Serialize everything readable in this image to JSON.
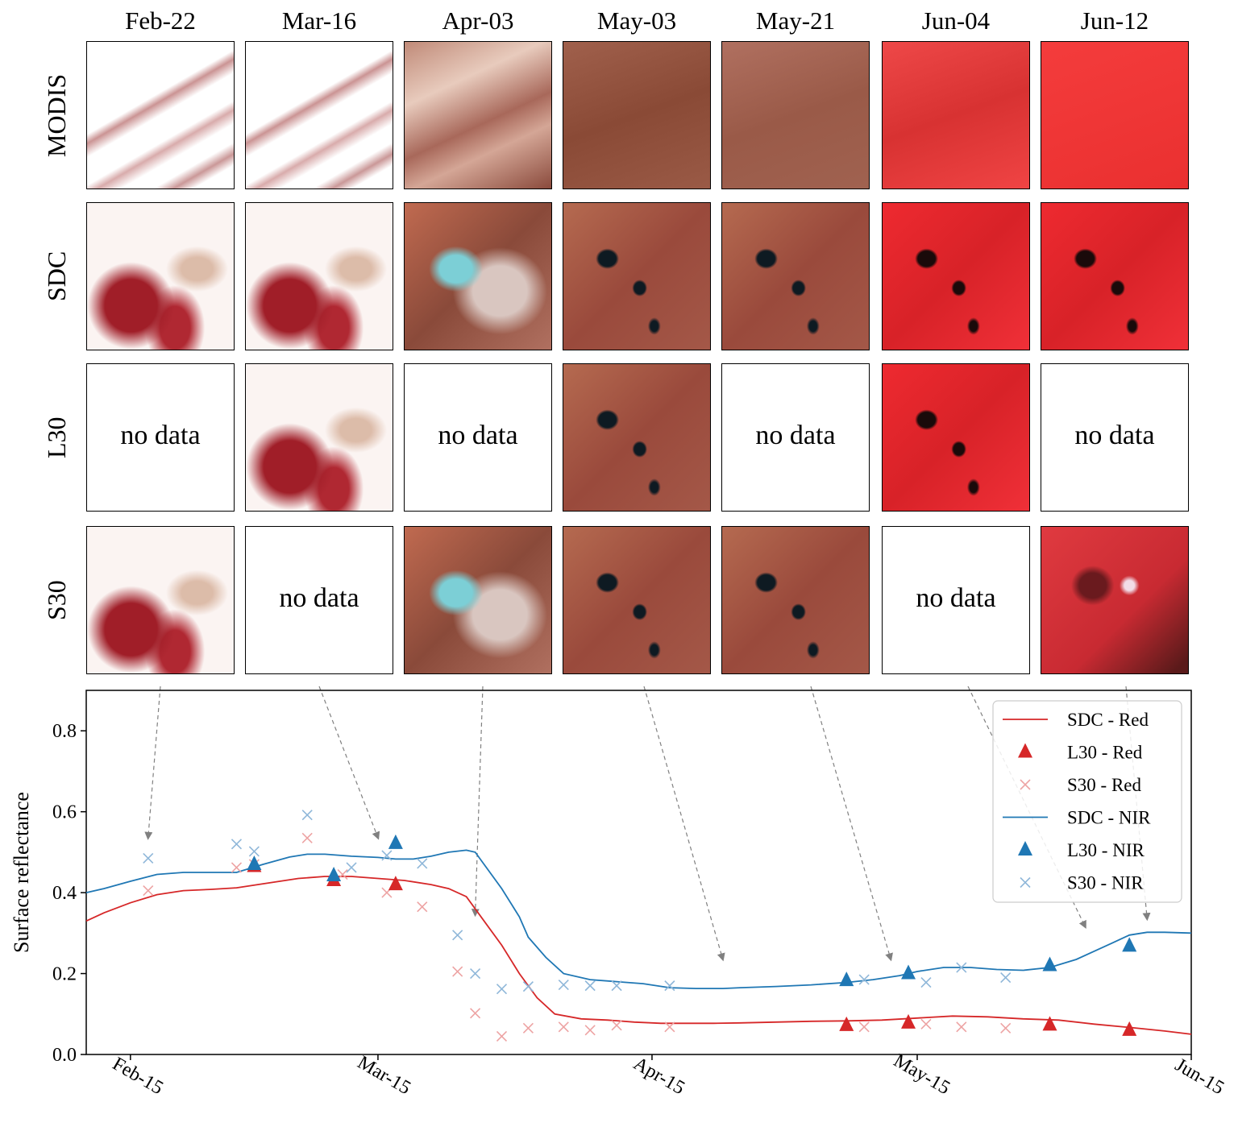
{
  "dates": [
    "Feb-22",
    "Mar-16",
    "Apr-03",
    "May-03",
    "May-21",
    "Jun-04",
    "Jun-12"
  ],
  "rows": [
    {
      "label": "MODIS",
      "tiles": [
        "modis-winter",
        "modis-winter",
        "modis-apr",
        "modis-may",
        "modis-may2",
        "modis-jun",
        "modis-jun2"
      ]
    },
    {
      "label": "SDC",
      "tiles": [
        "cloudy",
        "cloudy",
        "apr",
        "may",
        "may",
        "jun",
        "jun"
      ]
    },
    {
      "label": "L30",
      "tiles": [
        "nodata",
        "cloudy",
        "nodata",
        "may",
        "nodata",
        "jun",
        "nodata"
      ]
    },
    {
      "label": "S30",
      "tiles": [
        "cloudy",
        "nodata",
        "apr",
        "may",
        "may",
        "nodata",
        "blurred"
      ]
    }
  ],
  "no_data_text": "no data",
  "chart_data": {
    "type": "line",
    "ylabel": "Surface reflectance",
    "xlabel": "",
    "ylim": [
      0.0,
      0.9
    ],
    "yticks": [
      0.0,
      0.2,
      0.4,
      0.6,
      0.8
    ],
    "ytick_labels": [
      "0.0",
      "0.2",
      "0.4",
      "0.6",
      "0.8"
    ],
    "xlim_days": [
      36,
      161
    ],
    "xticks": [
      {
        "day": 41,
        "label": "Feb-15"
      },
      {
        "day": 69,
        "label": "Mar-15"
      },
      {
        "day": 100,
        "label": "Apr-15"
      },
      {
        "day": 130,
        "label": "May-15"
      },
      {
        "day": 161,
        "label": "Jun-15"
      }
    ],
    "colors": {
      "red": "#d62728",
      "nir": "#1f77b4",
      "red_light": "#eda3a3",
      "nir_light": "#8fb7d9"
    },
    "legend": [
      "SDC - Red",
      "L30 - Red",
      "S30 - Red",
      "SDC - NIR",
      "L30 - NIR",
      "S30 - NIR"
    ],
    "legend_position": "top-right",
    "series": [
      {
        "name": "SDC - Red",
        "kind": "line",
        "color": "red",
        "x": [
          36,
          38,
          41,
          44,
          47,
          50,
          53,
          56,
          60,
          63,
          66,
          69,
          72,
          75,
          77,
          79,
          81,
          83,
          85,
          87,
          89,
          92,
          95,
          98,
          101,
          104,
          107,
          110,
          114,
          118,
          122,
          126,
          130,
          134,
          138,
          142,
          146,
          150,
          154,
          158,
          161
        ],
        "y": [
          0.33,
          0.35,
          0.375,
          0.395,
          0.405,
          0.408,
          0.412,
          0.422,
          0.435,
          0.44,
          0.44,
          0.435,
          0.43,
          0.42,
          0.41,
          0.39,
          0.33,
          0.27,
          0.2,
          0.14,
          0.1,
          0.088,
          0.085,
          0.08,
          0.077,
          0.077,
          0.077,
          0.078,
          0.08,
          0.082,
          0.083,
          0.085,
          0.09,
          0.095,
          0.093,
          0.088,
          0.085,
          0.075,
          0.067,
          0.058,
          0.05
        ]
      },
      {
        "name": "SDC - NIR",
        "kind": "line",
        "color": "nir",
        "x": [
          36,
          38,
          41,
          44,
          47,
          50,
          53,
          56,
          59,
          61,
          63,
          66,
          69,
          71,
          73,
          75,
          77,
          79,
          80,
          81,
          83,
          85,
          86,
          88,
          90,
          93,
          96,
          99,
          102,
          105,
          108,
          110,
          114,
          118,
          122,
          125,
          128,
          130,
          133,
          136,
          139,
          142,
          145,
          148,
          150,
          152,
          154,
          156,
          158,
          161
        ],
        "y": [
          0.4,
          0.41,
          0.428,
          0.445,
          0.45,
          0.45,
          0.45,
          0.47,
          0.488,
          0.495,
          0.495,
          0.49,
          0.487,
          0.483,
          0.483,
          0.49,
          0.5,
          0.505,
          0.5,
          0.47,
          0.41,
          0.34,
          0.29,
          0.24,
          0.2,
          0.185,
          0.18,
          0.175,
          0.165,
          0.163,
          0.163,
          0.165,
          0.168,
          0.172,
          0.178,
          0.185,
          0.195,
          0.205,
          0.215,
          0.215,
          0.21,
          0.208,
          0.215,
          0.235,
          0.255,
          0.275,
          0.295,
          0.302,
          0.302,
          0.3
        ]
      },
      {
        "name": "L30 - Red",
        "kind": "triangle",
        "color": "red",
        "x": [
          55,
          64,
          71,
          122,
          129,
          145,
          154
        ],
        "y": [
          0.465,
          0.43,
          0.42,
          0.072,
          0.078,
          0.073,
          0.06
        ]
      },
      {
        "name": "L30 - NIR",
        "kind": "triangle",
        "color": "nir",
        "x": [
          55,
          64,
          71,
          122,
          129,
          145,
          154
        ],
        "y": [
          0.47,
          0.442,
          0.522,
          0.183,
          0.2,
          0.22,
          0.268
        ]
      },
      {
        "name": "S30 - Red",
        "kind": "x",
        "color": "red_light",
        "x": [
          43,
          53,
          55,
          61,
          65,
          70,
          74,
          78,
          80,
          83,
          86,
          90,
          93,
          96,
          102,
          124,
          131,
          135,
          140
        ],
        "y": [
          0.405,
          0.462,
          0.47,
          0.535,
          0.445,
          0.4,
          0.365,
          0.205,
          0.102,
          0.045,
          0.065,
          0.068,
          0.06,
          0.072,
          0.068,
          0.068,
          0.075,
          0.068,
          0.065
        ]
      },
      {
        "name": "S30 - NIR",
        "kind": "x",
        "color": "nir_light",
        "x": [
          43,
          53,
          55,
          61,
          66,
          70,
          74,
          78,
          80,
          83,
          86,
          90,
          93,
          96,
          102,
          124,
          131,
          135,
          140
        ],
        "y": [
          0.485,
          0.52,
          0.502,
          0.592,
          0.462,
          0.492,
          0.472,
          0.295,
          0.2,
          0.162,
          0.168,
          0.172,
          0.17,
          0.17,
          0.17,
          0.185,
          0.178,
          0.215,
          0.19
        ]
      }
    ],
    "arrows": [
      {
        "from_col": 0,
        "to_day": 43,
        "to_y": 0.52
      },
      {
        "from_col": 1,
        "to_day": 69,
        "to_y": 0.52
      },
      {
        "from_col": 2,
        "to_day": 80,
        "to_y": 0.33
      },
      {
        "from_col": 3,
        "to_day": 108,
        "to_y": 0.22
      },
      {
        "from_col": 4,
        "to_day": 127,
        "to_y": 0.22
      },
      {
        "from_col": 5,
        "to_day": 149,
        "to_y": 0.3
      },
      {
        "from_col": 6,
        "to_day": 156,
        "to_y": 0.32
      }
    ]
  }
}
